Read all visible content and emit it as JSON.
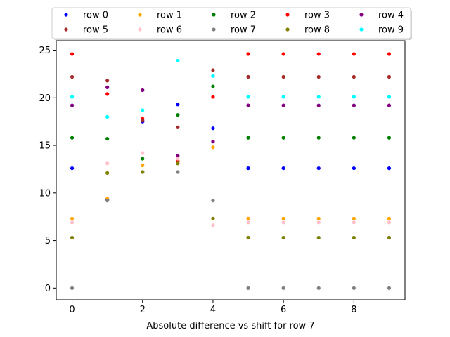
{
  "chart_data": {
    "type": "scatter",
    "title": "",
    "xlabel": "Absolute difference vs shift for row 7",
    "ylabel": "",
    "xlim": [
      -0.45,
      9.45
    ],
    "ylim": [
      -1.23,
      26.0
    ],
    "xticks": [
      0,
      2,
      4,
      6,
      8
    ],
    "xtick_labels": [
      "0",
      "2",
      "4",
      "6",
      "8"
    ],
    "yticks": [
      0,
      5,
      10,
      15,
      20,
      25
    ],
    "ytick_labels": [
      "0",
      "5",
      "10",
      "15",
      "20",
      "25"
    ],
    "grid": false,
    "legend": {
      "placement": "top-center, above plot",
      "columns": 5
    },
    "x": [
      0,
      1,
      2,
      3,
      4,
      5,
      6,
      7,
      8,
      9
    ],
    "series": [
      {
        "name": "row 0",
        "color": "#0000ff",
        "values": [
          12.6,
          9.3,
          17.5,
          19.3,
          16.8,
          12.6,
          12.6,
          12.6,
          12.6,
          12.6
        ]
      },
      {
        "name": "row 1",
        "color": "#ffa500",
        "values": [
          7.3,
          9.4,
          12.9,
          13.4,
          14.8,
          7.3,
          7.3,
          7.3,
          7.3,
          7.3
        ]
      },
      {
        "name": "row 2",
        "color": "#008000",
        "values": [
          15.8,
          15.7,
          13.6,
          18.2,
          21.2,
          15.8,
          15.8,
          15.8,
          15.8,
          15.8
        ]
      },
      {
        "name": "row 3",
        "color": "#ff0000",
        "values": [
          24.6,
          20.4,
          17.8,
          13.3,
          20.1,
          24.6,
          24.6,
          24.6,
          24.6,
          24.6
        ]
      },
      {
        "name": "row 4",
        "color": "#800080",
        "values": [
          19.2,
          21.1,
          20.8,
          13.9,
          15.4,
          19.2,
          19.2,
          19.2,
          19.2,
          19.2
        ]
      },
      {
        "name": "row 5",
        "color": "#a52a2a",
        "values": [
          22.2,
          21.8,
          17.6,
          16.9,
          22.9,
          22.2,
          22.2,
          22.2,
          22.2,
          22.2
        ]
      },
      {
        "name": "row 6",
        "color": "#ffc0cb",
        "values": [
          6.9,
          13.1,
          14.2,
          13.6,
          6.6,
          6.9,
          6.9,
          6.9,
          6.9,
          6.9
        ]
      },
      {
        "name": "row 7",
        "color": "#808080",
        "values": [
          0.0,
          9.2,
          12.2,
          12.2,
          9.2,
          0.0,
          0.0,
          0.0,
          0.0,
          0.0
        ]
      },
      {
        "name": "row 8",
        "color": "#808000",
        "values": [
          5.3,
          12.1,
          12.2,
          13.1,
          7.3,
          5.3,
          5.3,
          5.3,
          5.3,
          5.3
        ]
      },
      {
        "name": "row 9",
        "color": "#00ffff",
        "values": [
          20.1,
          18.0,
          18.7,
          23.9,
          22.3,
          20.1,
          20.1,
          20.1,
          20.1,
          20.1
        ]
      }
    ]
  }
}
